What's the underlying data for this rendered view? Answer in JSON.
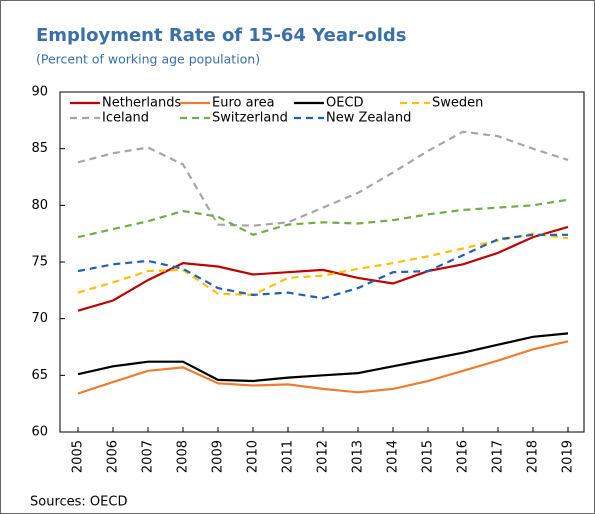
{
  "chart_data": {
    "type": "line",
    "title": "Employment Rate of 15-64 Year-olds",
    "subtitle": "(Percent of working age population)",
    "source": "Sources: OECD",
    "categories": [
      "2005",
      "2006",
      "2007",
      "2008",
      "2009",
      "2010",
      "2011",
      "2012",
      "2013",
      "2014",
      "2015",
      "2016",
      "2017",
      "2018",
      "2019"
    ],
    "series": [
      {
        "name": "Netherlands",
        "color": "#c00000",
        "dash": false,
        "values": [
          70.7,
          71.6,
          73.4,
          74.9,
          74.6,
          73.9,
          74.1,
          74.3,
          73.6,
          73.1,
          74.2,
          74.8,
          75.8,
          77.2,
          78.1
        ]
      },
      {
        "name": "Euro area",
        "color": "#ed7d31",
        "dash": false,
        "values": [
          63.4,
          64.4,
          65.4,
          65.7,
          64.3,
          64.1,
          64.2,
          63.8,
          63.5,
          63.8,
          64.5,
          65.4,
          66.3,
          67.3,
          68.0
        ]
      },
      {
        "name": "OECD",
        "color": "#000000",
        "dash": false,
        "values": [
          65.1,
          65.8,
          66.2,
          66.2,
          64.6,
          64.5,
          64.8,
          65.0,
          65.2,
          65.8,
          66.4,
          67.0,
          67.7,
          68.4,
          68.7
        ]
      },
      {
        "name": "Sweden",
        "color": "#ffc000",
        "dash": true,
        "values": [
          72.3,
          73.2,
          74.2,
          74.3,
          72.2,
          72.1,
          73.6,
          73.8,
          74.4,
          74.9,
          75.5,
          76.2,
          76.9,
          77.5,
          77.1
        ]
      },
      {
        "name": "Iceland",
        "color": "#a6a6a6",
        "dash": true,
        "values": [
          83.8,
          84.6,
          85.1,
          83.6,
          78.3,
          78.2,
          78.5,
          79.8,
          81.1,
          82.9,
          84.8,
          86.5,
          86.1,
          85.0,
          84.0
        ]
      },
      {
        "name": "Switzerland",
        "color": "#70ad47",
        "dash": true,
        "values": [
          77.2,
          77.9,
          78.6,
          79.5,
          79.0,
          77.4,
          78.3,
          78.5,
          78.4,
          78.7,
          79.2,
          79.6,
          79.8,
          80.0,
          80.5
        ]
      },
      {
        "name": "New Zealand",
        "color": "#1f5fb4",
        "dash": true,
        "values": [
          74.2,
          74.8,
          75.1,
          74.4,
          72.7,
          72.1,
          72.3,
          71.8,
          72.7,
          74.1,
          74.2,
          75.6,
          77.0,
          77.4,
          77.4
        ]
      }
    ],
    "ylim": [
      60,
      90
    ],
    "yticks": [
      60,
      65,
      70,
      75,
      80,
      85,
      90
    ],
    "grid": false
  }
}
